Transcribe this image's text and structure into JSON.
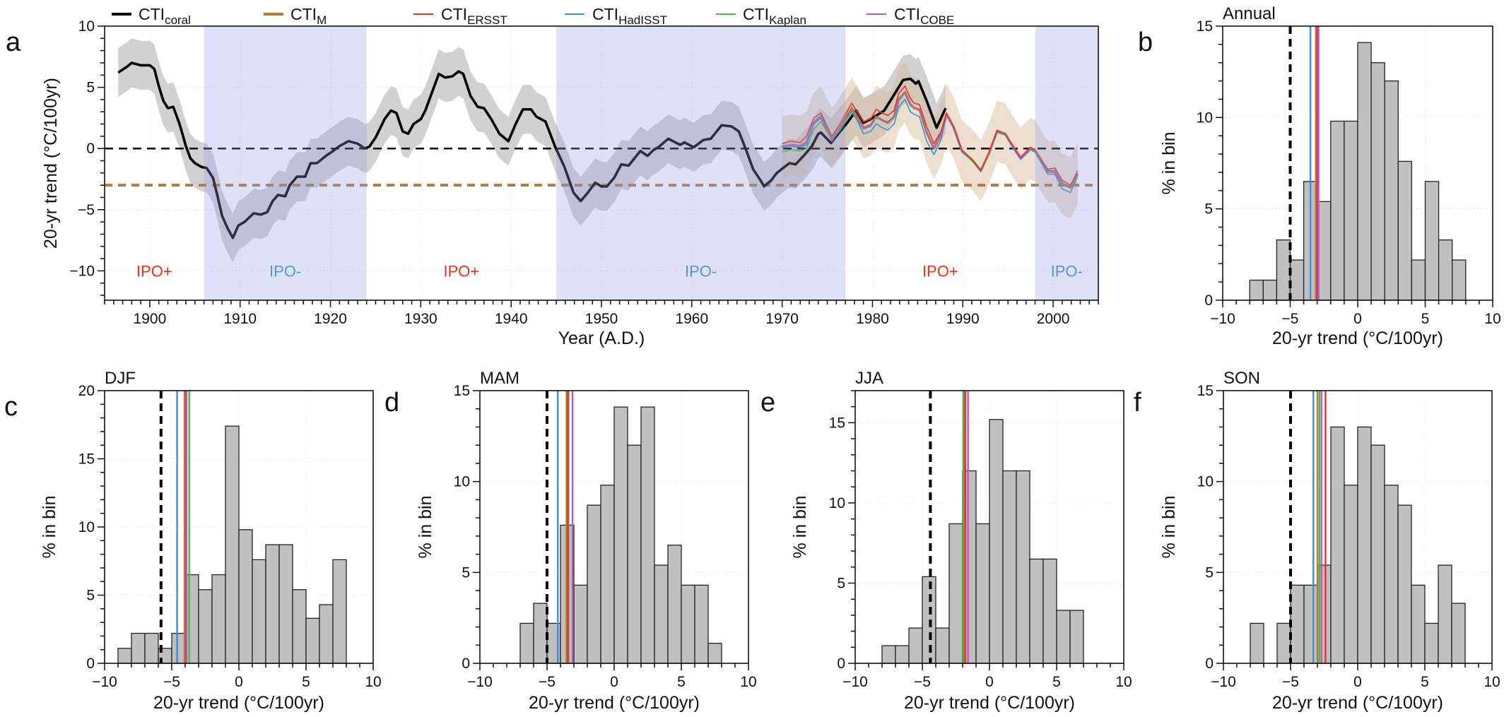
{
  "chart_data": [
    {
      "type": "line",
      "letter": "a",
      "xlabel": "Year (A.D.)",
      "ylabel": "20-yr trend (°C/100yr)",
      "xlim": [
        1895,
        2005
      ],
      "ylim": [
        -12.4,
        10
      ],
      "xticks": [
        1900,
        1910,
        1920,
        1930,
        1940,
        1950,
        1960,
        1970,
        1980,
        1990,
        2000
      ],
      "yticks": [
        -10,
        -5,
        0,
        5,
        10
      ],
      "grid": true,
      "legend_position": "top",
      "legend": [
        {
          "base": "CTI",
          "sub": "coral",
          "color": "#000000"
        },
        {
          "base": "CTI",
          "sub": "M",
          "color": "#b5793a"
        },
        {
          "base": "CTI",
          "sub": "ERSST",
          "color": "#e8322a"
        },
        {
          "base": "CTI",
          "sub": "HadISST",
          "color": "#3a8fd6"
        },
        {
          "base": "CTI",
          "sub": "Kaplan",
          "color": "#4cb848"
        },
        {
          "base": "CTI",
          "sub": "COBE",
          "color": "#b35cc8"
        }
      ],
      "ipo_phases": [
        {
          "text": "IPO+",
          "start": 1895,
          "end": 1906,
          "shaded": false,
          "color": "#e8321e"
        },
        {
          "text": "IPO-",
          "start": 1906,
          "end": 1924,
          "shaded": true,
          "color": "#5b93d3"
        },
        {
          "text": "IPO+",
          "start": 1924,
          "end": 1945,
          "shaded": false,
          "color": "#e8321e"
        },
        {
          "text": "IPO-",
          "start": 1945,
          "end": 1977,
          "shaded": true,
          "color": "#5b93d3"
        },
        {
          "text": "IPO+",
          "start": 1977,
          "end": 1998,
          "shaded": false,
          "color": "#e8321e"
        },
        {
          "text": "IPO-",
          "start": 1998,
          "end": 2005,
          "shaded": true,
          "color": "#5b93d3"
        }
      ],
      "reference_lines": [
        {
          "value": 0,
          "color": "#000000",
          "style": "dashed"
        },
        {
          "value": -3,
          "color": "#b5793a",
          "style": "dashed",
          "series": "M"
        }
      ],
      "coral": {
        "uncertainty_halfwidth": 2,
        "x": [
          1896.5,
          1897.5,
          1898,
          1899,
          1900,
          1900.5,
          1901,
          1901.5,
          1902,
          1902.6,
          1903.3,
          1904,
          1904.5,
          1905,
          1905.7,
          1906.3,
          1907,
          1907.5,
          1908,
          1908.6,
          1909.2,
          1909.8,
          1910.5,
          1911.5,
          1912.3,
          1913,
          1913.6,
          1914.2,
          1915,
          1915.5,
          1916.3,
          1917.2,
          1917.8,
          1918.5,
          1919.5,
          1920.3,
          1921,
          1922,
          1923,
          1923.8,
          1924.3,
          1925,
          1926,
          1926.7,
          1927.3,
          1928,
          1928.6,
          1929.2,
          1930,
          1930.5,
          1931.3,
          1932,
          1932.7,
          1933.5,
          1934.2,
          1934.7,
          1935.5,
          1936.3,
          1937,
          1937.8,
          1938.7,
          1939.7,
          1940.5,
          1941.3,
          1942.2,
          1942.8,
          1943.8,
          1944.9,
          1945.9,
          1946.9,
          1947.7,
          1948.5,
          1949.3,
          1950,
          1950.6,
          1951.4,
          1952.2,
          1953,
          1954.3,
          1955.1,
          1955.8,
          1956.3,
          1957.4,
          1958.7,
          1959.2,
          1960.2,
          1961.3,
          1962.1,
          1963.3,
          1964.4,
          1965.2,
          1966,
          1966.8,
          1967.6,
          1968,
          1968.8,
          1969.4,
          1970.1,
          1970.8,
          1971.5,
          1972.5,
          1973.3,
          1974,
          1974.3,
          1975.4,
          1977.2,
          1978.2,
          1979,
          1979.8,
          1981.3,
          1982.4,
          1983.4,
          1984.2,
          1984.8,
          1985.1,
          1986,
          1987.1,
          1988.1
        ],
        "y": [
          6.2,
          6.7,
          7.0,
          6.8,
          6.8,
          6.5,
          5.1,
          3.9,
          3.3,
          3.4,
          2.0,
          0.2,
          -0.8,
          -1.2,
          -1.5,
          -1.6,
          -2.4,
          -3.9,
          -5.5,
          -6.5,
          -7.3,
          -6.3,
          -6.0,
          -5.3,
          -5.4,
          -5.2,
          -4.3,
          -3.8,
          -3.9,
          -3.0,
          -2.3,
          -2.3,
          -1.2,
          -1.2,
          -0.6,
          -0.2,
          0.2,
          0.6,
          0.4,
          0.0,
          0.15,
          0.9,
          2.4,
          3.1,
          2.9,
          1.4,
          1.2,
          2.0,
          2.4,
          3.1,
          4.7,
          6.1,
          5.8,
          5.9,
          6.3,
          6.1,
          4.3,
          3.4,
          3.3,
          2.4,
          1.2,
          0.6,
          2.0,
          3.2,
          3.2,
          2.6,
          2.2,
          0.1,
          -1.5,
          -3.6,
          -4.3,
          -3.6,
          -2.8,
          -3.1,
          -3.1,
          -2.4,
          -1.3,
          -1.4,
          -0.2,
          -0.6,
          -0.1,
          0.1,
          0.8,
          0.3,
          0.5,
          0.1,
          0.7,
          0.8,
          1.9,
          1.8,
          1.4,
          -0.1,
          -1.7,
          -2.6,
          -3.1,
          -2.6,
          -2.0,
          -1.6,
          -1.2,
          -1.3,
          -0.5,
          0.2,
          1.2,
          1.3,
          0.45,
          2.1,
          3.1,
          2.1,
          2.4,
          3.1,
          4.4,
          5.6,
          5.7,
          5.3,
          5.5,
          3.9,
          1.7,
          3.3
        ]
      },
      "instrumental": {
        "x": [
          1970.0,
          1970.9,
          1972.0,
          1972.7,
          1973.5,
          1974.3,
          1975.5,
          1976.4,
          1977.7,
          1978.3,
          1979.0,
          1979.8,
          1980.4,
          1981.1,
          1981.7,
          1982.4,
          1982.9,
          1983.6,
          1984.2,
          1984.6,
          1985.2,
          1986.0,
          1986.8,
          1987.6,
          1988.2,
          1989.0,
          1989.9,
          1991.0,
          1992.0,
          1992.9,
          1993.8,
          1994.7,
          1995.5,
          1996.4,
          1997.5,
          1998.0,
          1999.4,
          2000.2,
          2001.0,
          2001.9,
          2002.7
        ],
        "M_uncertainty_halfwidth": 2.5,
        "series": [
          {
            "sub": "M",
            "color": "#b5793a",
            "y": [
              0.1,
              0.3,
              0.2,
              0.5,
              2.1,
              2.6,
              0.8,
              1.7,
              3.3,
              2.6,
              1.7,
              1.9,
              2.6,
              2.3,
              2.1,
              2.6,
              4.0,
              4.6,
              3.6,
              3.3,
              3.2,
              1.3,
              0.0,
              1.2,
              2.8,
              1.7,
              -0.2,
              -0.9,
              -1.8,
              -0.4,
              1.4,
              1.2,
              0.2,
              -0.8,
              0.0,
              -0.2,
              -1.9,
              -1.9,
              -2.9,
              -3.2,
              -2.1
            ]
          },
          {
            "sub": "HadISST",
            "color": "#3a8fd6",
            "y": [
              0.1,
              0.2,
              0.1,
              0.3,
              2.0,
              2.5,
              0.6,
              1.6,
              3.0,
              2.3,
              1.2,
              1.4,
              2.0,
              1.7,
              1.5,
              2.0,
              3.4,
              4.0,
              3.0,
              2.8,
              2.6,
              0.6,
              -0.5,
              0.8,
              2.7,
              1.6,
              -0.3,
              -1.0,
              -1.9,
              -0.4,
              1.4,
              1.1,
              0.1,
              -0.9,
              -0.1,
              -0.3,
              -2.1,
              -2.1,
              -3.3,
              -3.6,
              -2.3
            ]
          },
          {
            "sub": "Kaplan",
            "color": "#4cb848",
            "y": [
              -0.3,
              -0.1,
              -0.2,
              0.0,
              1.6,
              2.2,
              0.7,
              1.5,
              3.1,
              2.4,
              1.6,
              1.8,
              2.5,
              2.3,
              2.2,
              2.5,
              3.9,
              4.5,
              3.5,
              3.3,
              3.1,
              1.3,
              0.1,
              1.2,
              2.8,
              1.7,
              -0.2,
              -1.0,
              -1.8,
              -0.5,
              1.3,
              1.1,
              0.2,
              -0.8,
              0.0,
              -0.2,
              -1.8,
              -1.8,
              -2.8,
              -3.1,
              -2.3
            ]
          },
          {
            "sub": "COBE",
            "color": "#b35cc8",
            "y": [
              0.2,
              0.3,
              0.2,
              0.5,
              2.2,
              2.7,
              0.7,
              1.7,
              3.2,
              2.5,
              1.6,
              1.9,
              2.6,
              2.3,
              2.1,
              2.6,
              4.0,
              4.6,
              3.6,
              3.3,
              3.1,
              1.4,
              0.1,
              1.2,
              2.8,
              1.7,
              -0.2,
              -0.9,
              -1.8,
              -0.4,
              1.4,
              1.2,
              0.2,
              -0.8,
              0.0,
              -0.1,
              -1.8,
              -1.8,
              -2.9,
              -3.1,
              -1.8
            ]
          },
          {
            "sub": "ERSST",
            "color": "#e8322a",
            "y": [
              0.4,
              0.6,
              0.5,
              1.0,
              2.5,
              2.9,
              1.0,
              2.0,
              3.7,
              3.0,
              2.2,
              2.4,
              3.2,
              2.9,
              2.7,
              3.1,
              4.5,
              5.1,
              4.1,
              3.7,
              3.6,
              1.8,
              0.4,
              1.4,
              2.9,
              1.8,
              -0.1,
              -0.9,
              -1.8,
              -0.3,
              1.5,
              1.2,
              0.3,
              -0.7,
              0.1,
              -0.1,
              -1.7,
              -1.6,
              -2.6,
              -3.0,
              -2.0
            ]
          }
        ]
      }
    },
    {
      "type": "histogram",
      "letter": "b",
      "title": "Annual",
      "xlabel": "20-yr trend (°C/100yr)",
      "ylabel": "% in bin",
      "xlim": [
        -10,
        10
      ],
      "ylim": [
        0,
        15
      ],
      "xticks": [
        -10,
        -5,
        0,
        5,
        10
      ],
      "yticks": [
        0,
        5,
        10,
        15
      ],
      "bin_start": -8,
      "bin_width": 1,
      "values": [
        1.1,
        1.1,
        3.3,
        2.2,
        6.5,
        5.4,
        9.8,
        9.8,
        14.1,
        13.0,
        12.0,
        7.6,
        2.2,
        6.5,
        3.3,
        2.2
      ],
      "reference_lines": [
        {
          "sub": "coral",
          "value": -5.0,
          "color": "#000000",
          "style": "dashed"
        },
        {
          "sub": "HadISST",
          "value": -3.5,
          "color": "#3a8fd6"
        },
        {
          "sub": "Kaplan",
          "value": -3.0,
          "color": "#4cb848"
        },
        {
          "sub": "M",
          "value": -3.1,
          "color": "#b5793a"
        },
        {
          "sub": "ERSST",
          "value": -3.0,
          "color": "#e8322a"
        },
        {
          "sub": "COBE",
          "value": -2.9,
          "color": "#b35cc8"
        }
      ]
    },
    {
      "type": "histogram",
      "letter": "c",
      "title": "DJF",
      "xlabel": "20-yr trend (°C/100yr)",
      "ylabel": "% in bin",
      "xlim": [
        -10,
        10
      ],
      "ylim": [
        0,
        20
      ],
      "xticks": [
        -10,
        -5,
        0,
        5,
        10
      ],
      "yticks": [
        0,
        5,
        10,
        15,
        20
      ],
      "bin_start": -9,
      "bin_width": 1,
      "values": [
        1.1,
        2.2,
        2.2,
        1.1,
        2.2,
        6.5,
        5.4,
        6.5,
        17.4,
        9.8,
        7.6,
        8.7,
        8.7,
        5.4,
        3.3,
        4.3,
        7.6
      ],
      "reference_lines": [
        {
          "sub": "coral",
          "value": -5.8,
          "color": "#000000",
          "style": "dashed"
        },
        {
          "sub": "HadISST",
          "value": -4.6,
          "color": "#3a8fd6"
        },
        {
          "sub": "M",
          "value": -4.05,
          "color": "#b5793a"
        },
        {
          "sub": "ERSST",
          "value": -3.95,
          "color": "#e8322a"
        },
        {
          "sub": "COBE",
          "value": -3.9,
          "color": "#b35cc8"
        },
        {
          "sub": "Kaplan",
          "value": -3.7,
          "color": "#4cb848"
        }
      ]
    },
    {
      "type": "histogram",
      "letter": "d",
      "title": "MAM",
      "xlabel": "20-yr trend (°C/100yr)",
      "ylabel": "% in bin",
      "xlim": [
        -10,
        10
      ],
      "ylim": [
        0,
        15
      ],
      "xticks": [
        -10,
        -5,
        0,
        5,
        10
      ],
      "yticks": [
        0,
        5,
        10,
        15
      ],
      "bin_start": -7,
      "bin_width": 1,
      "values": [
        2.2,
        3.3,
        2.2,
        7.6,
        4.3,
        8.7,
        9.8,
        14.1,
        12.0,
        14.1,
        5.4,
        6.5,
        4.3,
        4.3,
        1.1
      ],
      "reference_lines": [
        {
          "sub": "coral",
          "value": -5.0,
          "color": "#000000",
          "style": "dashed"
        },
        {
          "sub": "HadISST",
          "value": -4.2,
          "color": "#3a8fd6"
        },
        {
          "sub": "Kaplan",
          "value": -3.4,
          "color": "#4cb848"
        },
        {
          "sub": "M",
          "value": -3.55,
          "color": "#b5793a"
        },
        {
          "sub": "ERSST",
          "value": -3.45,
          "color": "#e8322a"
        },
        {
          "sub": "COBE",
          "value": -3.1,
          "color": "#b35cc8"
        }
      ]
    },
    {
      "type": "histogram",
      "letter": "e",
      "title": "JJA",
      "xlabel": "20-yr trend (°C/100yr)",
      "ylabel": "% in bin",
      "xlim": [
        -10,
        10
      ],
      "ylim": [
        0,
        17
      ],
      "xticks": [
        -10,
        -5,
        0,
        5,
        10
      ],
      "yticks": [
        0,
        5,
        10,
        15
      ],
      "bin_start": -8,
      "bin_width": 1,
      "values": [
        1.1,
        1.1,
        2.2,
        5.4,
        2.2,
        8.7,
        12.0,
        8.7,
        15.2,
        12.0,
        12.0,
        6.5,
        6.5,
        3.3,
        3.3
      ],
      "reference_lines": [
        {
          "sub": "coral",
          "value": -4.4,
          "color": "#000000",
          "style": "dashed"
        },
        {
          "sub": "HadISST",
          "value": -1.95,
          "color": "#3a8fd6"
        },
        {
          "sub": "Kaplan",
          "value": -1.95,
          "color": "#4cb848"
        },
        {
          "sub": "M",
          "value": -1.85,
          "color": "#b5793a"
        },
        {
          "sub": "ERSST",
          "value": -1.8,
          "color": "#e8322a"
        },
        {
          "sub": "COBE",
          "value": -1.6,
          "color": "#b35cc8"
        }
      ]
    },
    {
      "type": "histogram",
      "letter": "f",
      "title": "SON",
      "xlabel": "20-yr trend (°C/100yr)",
      "ylabel": "% in bin",
      "xlim": [
        -10,
        10
      ],
      "ylim": [
        0,
        15
      ],
      "xticks": [
        -10,
        -5,
        0,
        5,
        10
      ],
      "yticks": [
        0,
        5,
        10,
        15
      ],
      "bin_start": -8,
      "bin_width": 1,
      "values": [
        2.2,
        0,
        2.2,
        4.3,
        4.3,
        5.4,
        13.0,
        9.8,
        13.0,
        12.0,
        9.8,
        8.7,
        4.3,
        2.2,
        5.4,
        3.3
      ],
      "reference_lines": [
        {
          "sub": "coral",
          "value": -5.0,
          "color": "#000000",
          "style": "dashed"
        },
        {
          "sub": "HadISST",
          "value": -3.3,
          "color": "#3a8fd6"
        },
        {
          "sub": "Kaplan",
          "value": -2.85,
          "color": "#4cb848"
        },
        {
          "sub": "M",
          "value": -3.0,
          "color": "#b5793a"
        },
        {
          "sub": "COBE",
          "value": -2.7,
          "color": "#b35cc8"
        },
        {
          "sub": "ERSST",
          "value": -2.4,
          "color": "#e8322a"
        }
      ]
    }
  ]
}
